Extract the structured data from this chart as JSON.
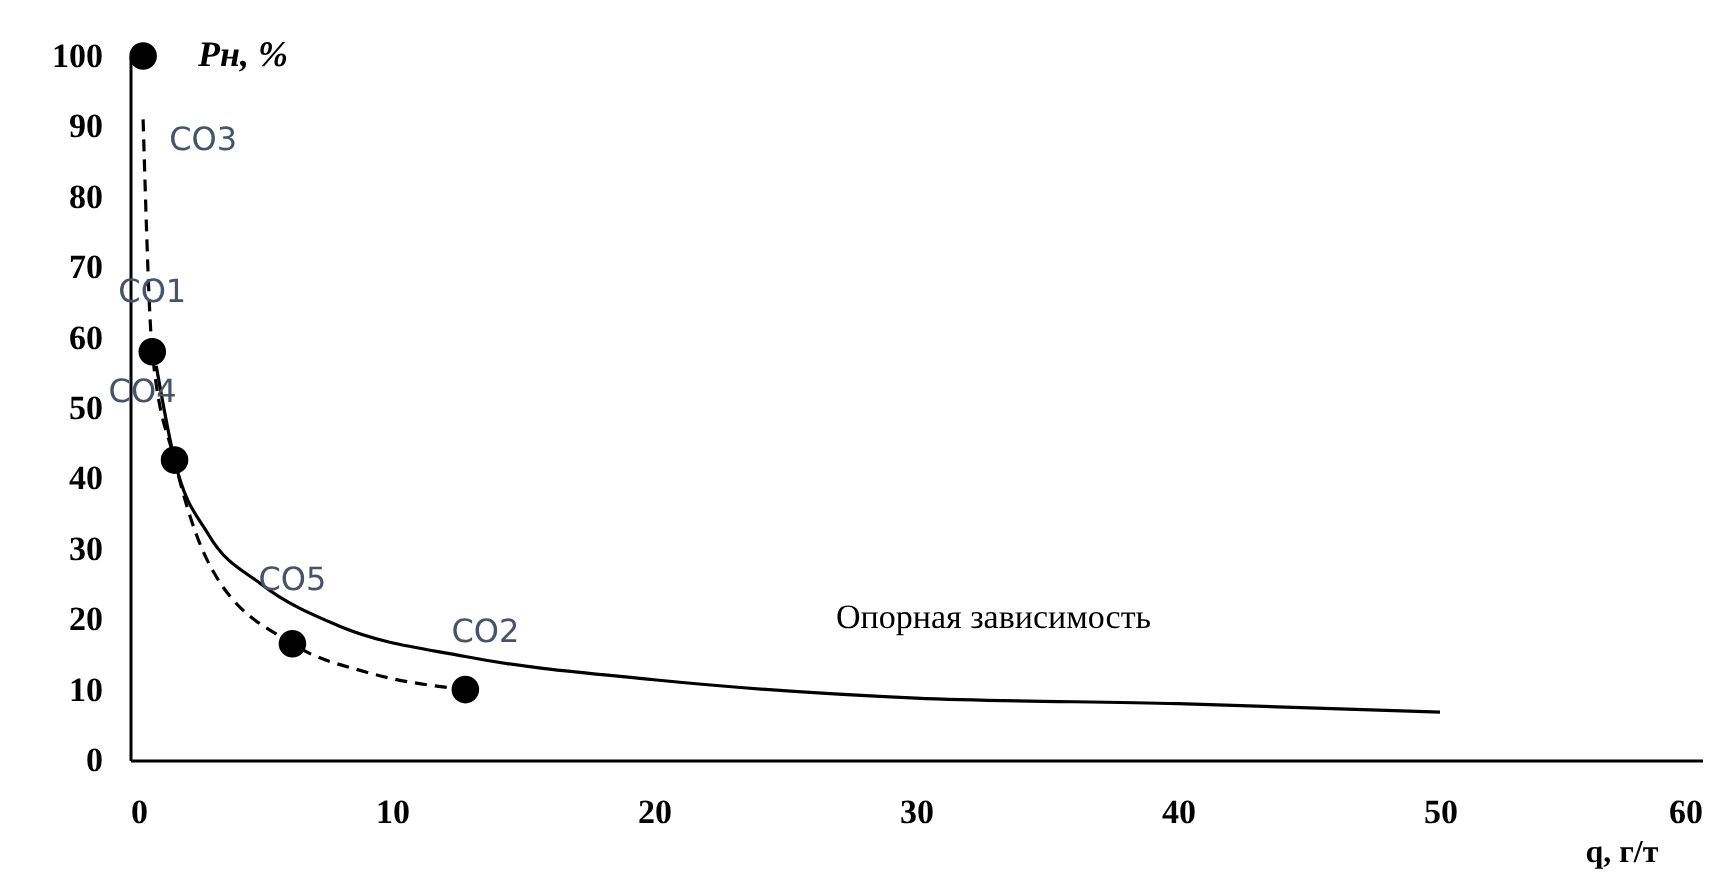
{
  "chart_data": {
    "type": "scatter",
    "xlabel": "q, г/т",
    "ylabel": "Pн, %",
    "xlim": [
      0,
      60
    ],
    "xticks": [
      0,
      10,
      20,
      30,
      40,
      50,
      60
    ],
    "ylim": [
      0,
      100
    ],
    "yticks": [
      0,
      10,
      20,
      30,
      40,
      50,
      60,
      70,
      80,
      90,
      100
    ],
    "grid": false,
    "legend": false,
    "series": [
      {
        "type": "line",
        "name": "Опорная зависимость",
        "color": "#000000",
        "line_style": "solid",
        "marker": "none",
        "x": [
          1,
          1.7,
          3,
          5,
          8,
          12.8,
          20,
          30,
          40,
          50
        ],
        "values": [
          56,
          42.6,
          32,
          25,
          19,
          14.7,
          11.4,
          8.8,
          8,
          6.8
        ]
      },
      {
        "type": "line",
        "color": "#000000",
        "line_style": "dashed",
        "marker": "none",
        "x": [
          0.5,
          0.85,
          1.7,
          3,
          6.2,
          9,
          12.8
        ],
        "values": [
          91,
          58,
          42.6,
          28,
          16.5,
          12.5,
          10
        ]
      },
      {
        "color": "#000000",
        "marker": "circle",
        "x": [
          0.5,
          0.85,
          1.7,
          6.2,
          12.8
        ],
        "values": [
          100,
          58,
          42.6,
          16.5,
          10
        ],
        "value_labels": [
          "CO3",
          "CO1",
          "CO4",
          "CO5",
          "CO2"
        ]
      }
    ]
  }
}
